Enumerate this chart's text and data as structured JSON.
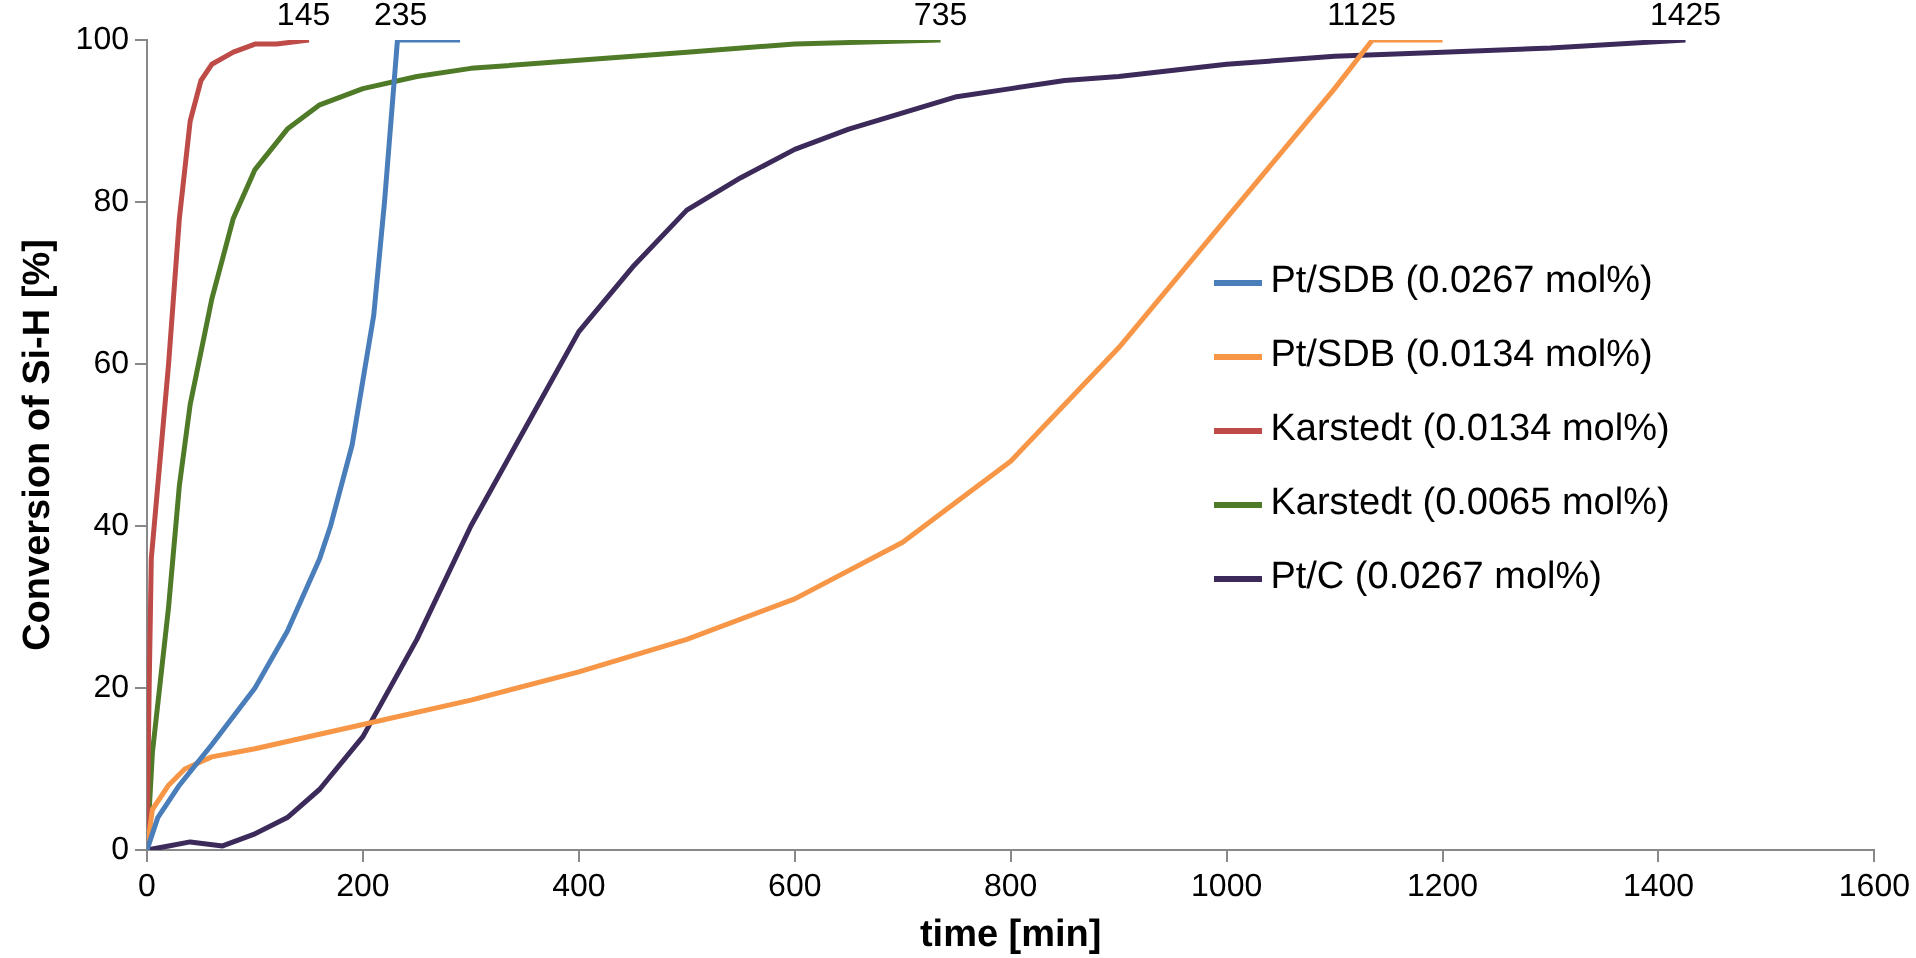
{
  "chart_data": {
    "type": "line",
    "xlabel": "time [min]",
    "ylabel": "Conversion of Si-H [%]",
    "xlim": [
      0,
      1600
    ],
    "xticks": [
      0,
      200,
      400,
      600,
      800,
      1000,
      1200,
      1400,
      1600
    ],
    "ylim": [
      0,
      100
    ],
    "yticks": [
      0,
      20,
      40,
      60,
      80,
      100
    ],
    "grid": false,
    "legend": "right",
    "marker": "none",
    "line_style": "solid",
    "series": [
      {
        "name": "Pt/SDB (0.0267 mol%)",
        "color": "#4a7ebb",
        "x": [
          0,
          10,
          30,
          60,
          100,
          130,
          160,
          170,
          190,
          210,
          220,
          232,
          260,
          290
        ],
        "values": [
          0,
          4,
          8,
          13,
          20,
          27,
          36,
          40,
          50,
          66,
          80,
          100,
          100,
          100
        ]
      },
      {
        "name": "Pt/SDB (0.0134 mol%)",
        "color": "#f79646",
        "x": [
          0,
          5,
          20,
          35,
          60,
          100,
          200,
          300,
          400,
          500,
          600,
          700,
          800,
          900,
          1000,
          1100,
          1135,
          1200
        ],
        "values": [
          0,
          5,
          8,
          10,
          11.5,
          12.5,
          15.5,
          18.5,
          22,
          26,
          31,
          38,
          48,
          62,
          78,
          94,
          100,
          100
        ]
      },
      {
        "name": "Karstedt (0.0134 mol%)",
        "color": "#be4b48",
        "x": [
          0,
          2,
          4,
          10,
          20,
          30,
          40,
          50,
          60,
          80,
          100,
          120,
          150
        ],
        "values": [
          0,
          20,
          36,
          45,
          60,
          78,
          90,
          95,
          97,
          98.5,
          99.5,
          99.5,
          100
        ]
      },
      {
        "name": "Karstedt (0.0065 mol%)",
        "color": "#4f7a28",
        "x": [
          0,
          5,
          20,
          30,
          40,
          60,
          80,
          100,
          130,
          160,
          200,
          250,
          300,
          400,
          500,
          600,
          735
        ],
        "values": [
          0,
          12,
          30,
          45,
          55,
          68,
          78,
          84,
          89,
          92,
          94,
          95.5,
          96.5,
          97.5,
          98.5,
          99.5,
          100
        ]
      },
      {
        "name": "Pt/C (0.0267 mol%)",
        "color": "#3c2a5a",
        "x": [
          0,
          20,
          40,
          70,
          100,
          130,
          160,
          200,
          250,
          300,
          350,
          400,
          450,
          500,
          550,
          600,
          650,
          700,
          750,
          800,
          850,
          900,
          1000,
          1100,
          1200,
          1300,
          1425
        ],
        "values": [
          0,
          0.5,
          1,
          0.5,
          2,
          4,
          7.5,
          14,
          26,
          40,
          52,
          64,
          72,
          79,
          83,
          86.5,
          89,
          91,
          93,
          94,
          95,
          95.5,
          97,
          98,
          98.5,
          99,
          100
        ]
      }
    ],
    "annotations": [
      {
        "text": "145",
        "x": 145,
        "y": 100
      },
      {
        "text": "235",
        "x": 235,
        "y": 100
      },
      {
        "text": "735",
        "x": 735,
        "y": 100
      },
      {
        "text": "1125",
        "x": 1125,
        "y": 100
      },
      {
        "text": "1425",
        "x": 1425,
        "y": 100
      }
    ]
  }
}
